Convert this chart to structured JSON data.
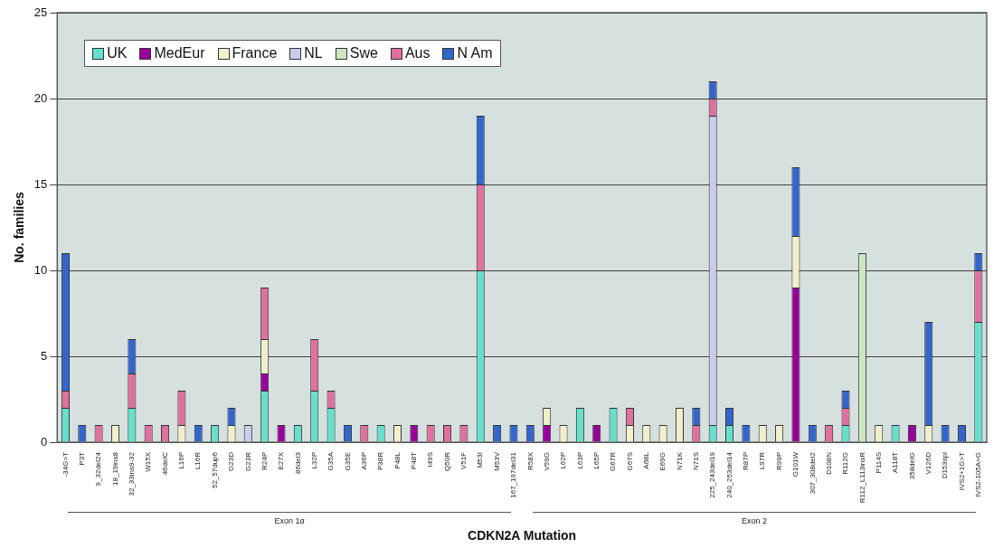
{
  "chart_data": {
    "type": "bar",
    "stacked": true,
    "xlabel": "CDKN2A Mutation",
    "ylabel": "No. families",
    "categories": [
      "-34G>T",
      "P3T",
      "9_32del24",
      "18_19ins8",
      "32_33ins9-32",
      "W15X",
      "46delC",
      "L16P",
      "L16R",
      "52_57dup6",
      "G23D",
      "G23R",
      "R24P",
      "E27X",
      "86del3",
      "L32P",
      "G35A",
      "G35E",
      "A36P",
      "P38R",
      "P48L",
      "P48T",
      "I49S",
      "Q50R",
      "V51F",
      "M53I",
      "M53V",
      "167_197del31",
      "R58X",
      "V59G",
      "L62P",
      "L63P",
      "L65P",
      "G67R",
      "G67S",
      "A68L",
      "E69G",
      "N71K",
      "N71S",
      "225_243del19",
      "240_253del14",
      "R87P",
      "L97R",
      "R99P",
      "G101W",
      "307_308del2",
      "D108N",
      "R112G",
      "R112_L113insR",
      "P114S",
      "A118T",
      "358delG",
      "V126D",
      "D153spl",
      "IVS2+1G>T",
      "IVS2-105A>G"
    ],
    "series": [
      {
        "name": "UK",
        "color": "#66e0cc",
        "values": [
          2,
          0,
          0,
          0,
          2,
          0,
          0,
          0,
          0,
          1,
          0,
          0,
          3,
          0,
          1,
          3,
          2,
          0,
          0,
          1,
          0,
          0,
          0,
          0,
          0,
          10,
          0,
          0,
          0,
          0,
          0,
          2,
          0,
          2,
          0,
          0,
          0,
          0,
          0,
          1,
          1,
          0,
          0,
          0,
          0,
          0,
          0,
          1,
          0,
          0,
          1,
          0,
          0,
          0,
          0,
          7
        ]
      },
      {
        "name": "MedEur",
        "color": "#990099",
        "values": [
          0,
          0,
          0,
          0,
          0,
          0,
          0,
          0,
          0,
          0,
          0,
          0,
          1,
          1,
          0,
          0,
          0,
          0,
          0,
          0,
          0,
          1,
          0,
          0,
          0,
          0,
          0,
          0,
          0,
          1,
          0,
          0,
          1,
          0,
          0,
          0,
          0,
          0,
          0,
          0,
          0,
          0,
          0,
          0,
          9,
          0,
          0,
          0,
          0,
          0,
          0,
          1,
          0,
          0,
          0,
          0
        ]
      },
      {
        "name": "France",
        "color": "#f2f0cc",
        "values": [
          0,
          0,
          0,
          1,
          0,
          0,
          0,
          1,
          0,
          0,
          1,
          0,
          2,
          0,
          0,
          0,
          0,
          0,
          0,
          0,
          1,
          0,
          0,
          0,
          0,
          0,
          0,
          0,
          0,
          1,
          1,
          0,
          0,
          0,
          1,
          1,
          1,
          2,
          0,
          0,
          0,
          0,
          1,
          1,
          3,
          0,
          0,
          0,
          0,
          1,
          0,
          0,
          1,
          0,
          0,
          0
        ]
      },
      {
        "name": "NL",
        "color": "#ccccee",
        "values": [
          0,
          0,
          0,
          0,
          0,
          0,
          0,
          0,
          0,
          0,
          0,
          1,
          0,
          0,
          0,
          0,
          0,
          0,
          0,
          0,
          0,
          0,
          0,
          0,
          0,
          0,
          0,
          0,
          0,
          0,
          0,
          0,
          0,
          0,
          0,
          0,
          0,
          0,
          0,
          18,
          0,
          0,
          0,
          0,
          0,
          0,
          0,
          0,
          0,
          0,
          0,
          0,
          0,
          0,
          0,
          0
        ]
      },
      {
        "name": "Swe",
        "color": "#cce6c0",
        "values": [
          0,
          0,
          0,
          0,
          0,
          0,
          0,
          0,
          0,
          0,
          0,
          0,
          0,
          0,
          0,
          0,
          0,
          0,
          0,
          0,
          0,
          0,
          0,
          0,
          0,
          0,
          0,
          0,
          0,
          0,
          0,
          0,
          0,
          0,
          0,
          0,
          0,
          0,
          0,
          0,
          0,
          0,
          0,
          0,
          0,
          0,
          0,
          0,
          11,
          0,
          0,
          0,
          0,
          0,
          0,
          0
        ]
      },
      {
        "name": "Aus",
        "color": "#e0709f",
        "values": [
          1,
          0,
          1,
          0,
          2,
          1,
          1,
          2,
          0,
          0,
          0,
          0,
          3,
          0,
          0,
          3,
          1,
          0,
          1,
          0,
          0,
          0,
          1,
          1,
          1,
          5,
          0,
          0,
          0,
          0,
          0,
          0,
          0,
          0,
          1,
          0,
          0,
          0,
          1,
          1,
          0,
          0,
          0,
          0,
          0,
          0,
          1,
          1,
          0,
          0,
          0,
          0,
          0,
          0,
          0,
          3
        ]
      },
      {
        "name": "N Am",
        "color": "#3366cc",
        "values": [
          8,
          1,
          0,
          0,
          2,
          0,
          0,
          0,
          1,
          0,
          1,
          0,
          0,
          0,
          0,
          0,
          0,
          1,
          0,
          0,
          0,
          0,
          0,
          0,
          0,
          4,
          1,
          1,
          1,
          0,
          0,
          0,
          0,
          0,
          0,
          0,
          0,
          0,
          1,
          1,
          1,
          1,
          0,
          0,
          4,
          1,
          0,
          1,
          0,
          0,
          0,
          0,
          6,
          1,
          1,
          1
        ]
      }
    ],
    "ylim": [
      0,
      25
    ],
    "yticks": [
      0,
      5,
      10,
      15,
      20,
      25
    ],
    "grid": "y",
    "legend": "top left",
    "annotations": [
      "Exon 1α",
      "Exon 2"
    ]
  }
}
